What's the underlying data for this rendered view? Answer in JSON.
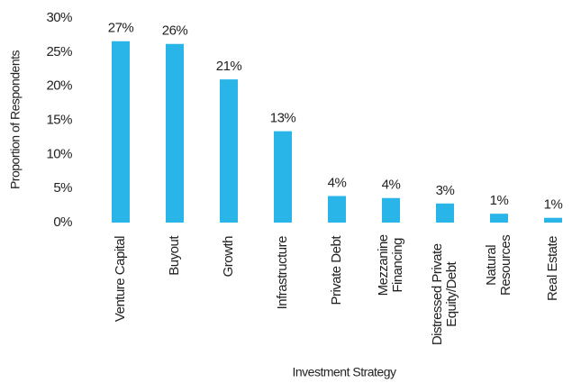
{
  "chart_data": {
    "type": "bar",
    "x_label": "Investment Strategy",
    "y_label": "Proportion of Respondents",
    "categories": [
      "Venture Capital",
      "Buyout",
      "Growth",
      "Infrastructure",
      "Private Debt",
      "Mezzanine Financing",
      "Distressed Private Equity/Debt",
      "Natural Resources",
      "Real Estate"
    ],
    "values": [
      26.6,
      26.2,
      21,
      13.4,
      3.9,
      3.6,
      2.8,
      1.3,
      0.7
    ],
    "value_labels": [
      "27%",
      "26%",
      "21%",
      "13%",
      "4%",
      "4%",
      "3%",
      "1%",
      "1%"
    ],
    "color": "#29b5e8",
    "ylim": [
      0,
      30
    ],
    "yticks": [
      {
        "value": 0,
        "label": "0%"
      },
      {
        "value": 5,
        "label": "5%"
      },
      {
        "value": 10,
        "label": "10%"
      },
      {
        "value": 15,
        "label": "15%"
      },
      {
        "value": 20,
        "label": "20%"
      },
      {
        "value": 25,
        "label": "25%"
      },
      {
        "value": 30,
        "label": "30%"
      }
    ],
    "grid": false
  }
}
